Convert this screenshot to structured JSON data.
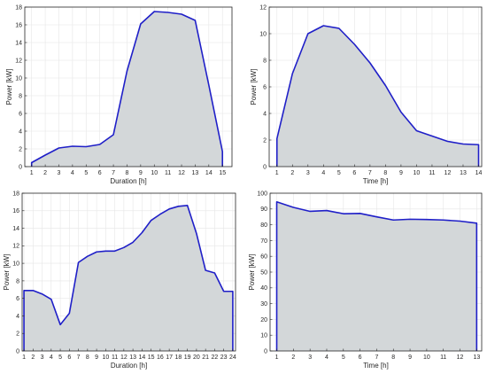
{
  "chart_data": [
    {
      "type": "area",
      "xlabel": "Duration [h]",
      "ylabel": "Power [kW]",
      "xlim": [
        0.5,
        15.7
      ],
      "ylim": [
        0,
        18
      ],
      "xticks": [
        1,
        2,
        3,
        4,
        5,
        6,
        7,
        8,
        9,
        10,
        11,
        12,
        13,
        14,
        15
      ],
      "yticks": [
        0,
        2,
        4,
        6,
        8,
        10,
        12,
        14,
        16,
        18
      ],
      "colors": {
        "line": "#1f1fc8",
        "fill": "#d3d7d9"
      },
      "x": [
        1,
        2,
        3,
        4,
        5,
        6,
        7,
        8,
        9,
        10,
        11,
        12,
        13,
        14,
        15
      ],
      "values": [
        0.45,
        1.3,
        2.1,
        2.3,
        2.25,
        2.5,
        3.6,
        10.8,
        16.1,
        17.5,
        17.4,
        17.2,
        16.5,
        9.2,
        1.7
      ],
      "grid": true
    },
    {
      "type": "area",
      "xlabel": "Time [h]",
      "ylabel": "Power [kW]",
      "xlim": [
        0.5,
        14.2
      ],
      "ylim": [
        0,
        12
      ],
      "xticks": [
        1,
        2,
        3,
        4,
        5,
        6,
        7,
        8,
        9,
        10,
        11,
        12,
        13,
        14
      ],
      "yticks": [
        0,
        2,
        4,
        6,
        8,
        10,
        12
      ],
      "colors": {
        "line": "#1f1fc8",
        "fill": "#d3d7d9"
      },
      "x": [
        1,
        2,
        3,
        4,
        5,
        6,
        7,
        8,
        9,
        10,
        11,
        12,
        13,
        14
      ],
      "values": [
        2.1,
        7.0,
        10.0,
        10.6,
        10.4,
        9.2,
        7.8,
        6.1,
        4.1,
        2.7,
        2.3,
        1.9,
        1.7,
        1.65
      ],
      "grid": true
    },
    {
      "type": "area",
      "xlabel": "Duration [h]",
      "ylabel": "Power [kW]",
      "xlim": [
        0.8,
        24.3
      ],
      "ylim": [
        0,
        18
      ],
      "xticks": [
        1,
        2,
        3,
        4,
        5,
        6,
        7,
        8,
        9,
        10,
        11,
        12,
        13,
        14,
        15,
        16,
        17,
        18,
        19,
        20,
        21,
        22,
        23,
        24
      ],
      "yticks": [
        0,
        2,
        4,
        6,
        8,
        10,
        12,
        14,
        16,
        18
      ],
      "colors": {
        "line": "#1f1fc8",
        "fill": "#d3d7d9"
      },
      "x": [
        1,
        2,
        3,
        4,
        5,
        6,
        7,
        8,
        9,
        10,
        11,
        12,
        13,
        14,
        15,
        16,
        17,
        18,
        19,
        20,
        21,
        22,
        23,
        24
      ],
      "values": [
        6.9,
        6.9,
        6.5,
        5.9,
        3.0,
        4.3,
        10.1,
        10.8,
        11.3,
        11.4,
        11.4,
        11.8,
        12.4,
        13.5,
        14.9,
        15.6,
        16.2,
        16.5,
        16.6,
        13.4,
        9.2,
        8.9,
        6.8,
        6.8
      ],
      "grid": true
    },
    {
      "type": "area",
      "xlabel": "Time [h]",
      "ylabel": "Power [kW]",
      "xlim": [
        0.6,
        13.3
      ],
      "ylim": [
        0,
        100
      ],
      "xticks": [
        1,
        2,
        3,
        4,
        5,
        6,
        7,
        8,
        9,
        10,
        11,
        12,
        13
      ],
      "yticks": [
        0,
        10,
        20,
        30,
        40,
        50,
        60,
        70,
        80,
        90,
        100
      ],
      "colors": {
        "line": "#1f1fc8",
        "fill": "#d3d7d9"
      },
      "x": [
        1,
        2,
        3,
        4,
        5,
        6,
        7,
        8,
        9,
        10,
        11,
        12,
        13
      ],
      "values": [
        94.5,
        91,
        88.5,
        89,
        87,
        87.2,
        85,
        83,
        83.5,
        83.3,
        83,
        82.3,
        81
      ],
      "grid": true
    }
  ]
}
